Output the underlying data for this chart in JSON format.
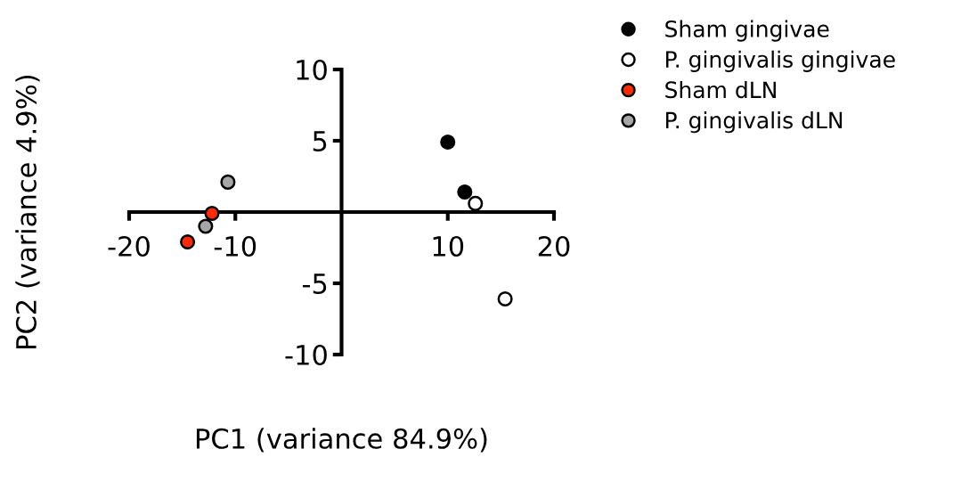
{
  "chart_data": {
    "type": "scatter",
    "xlabel": "PC1 (variance 84.9%)",
    "ylabel": "PC2 (variance 4.9%)",
    "xlim": [
      -20,
      20
    ],
    "ylim": [
      -10,
      10
    ],
    "xticks": [
      -20,
      -10,
      10,
      20
    ],
    "yticks": [
      -10,
      -5,
      5,
      10
    ],
    "grid": false,
    "legend": "right",
    "marker": "circle",
    "series": [
      {
        "name": "Sham gingivae",
        "color": "#000000",
        "x": [
          10.0,
          11.6
        ],
        "values": [
          4.9,
          1.4
        ]
      },
      {
        "name": "P. gingivalis gingivae",
        "color": "#ffffff",
        "x": [
          12.6,
          15.4
        ],
        "values": [
          0.6,
          -6.1
        ]
      },
      {
        "name": "Sham dLN",
        "color": "#ff2a00",
        "x": [
          -12.2,
          -14.5
        ],
        "values": [
          -0.1,
          -2.1
        ]
      },
      {
        "name": "P. gingivalis dLN",
        "color": "#a6a6a6",
        "x": [
          -10.7,
          -12.8
        ],
        "values": [
          2.1,
          -1.0
        ]
      }
    ]
  }
}
